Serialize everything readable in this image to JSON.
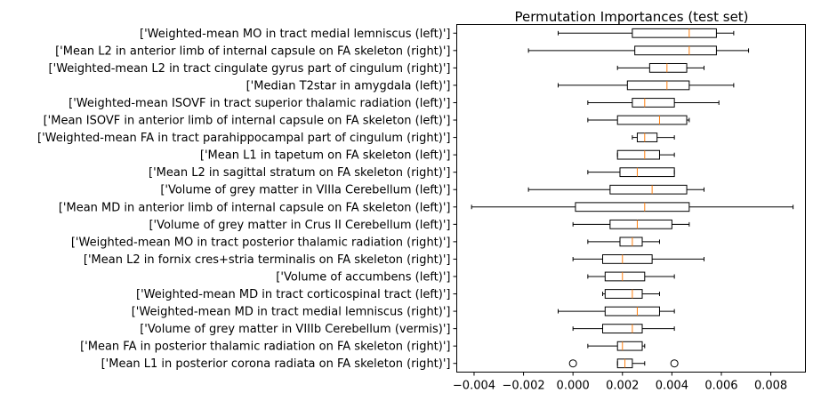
{
  "chart_data": {
    "type": "boxplot",
    "orientation": "horizontal",
    "title": "Permutation Importances (test set)",
    "xlabel": "",
    "ylabel": "",
    "xlim": [
      -0.0047,
      0.0094
    ],
    "xticks": [
      -0.004,
      -0.002,
      0.0,
      0.002,
      0.004,
      0.006,
      0.008
    ],
    "xtick_labels": [
      "−0.004",
      "−0.002",
      "0.000",
      "0.002",
      "0.004",
      "0.006",
      "0.008"
    ],
    "grid": false,
    "colors": {
      "box": "#000000",
      "median": "#ff7f0e",
      "flier": "#000000"
    },
    "boxes": [
      {
        "label": "['Weighted-mean MO in tract medial lemniscus (left)']",
        "whisker_low": -0.0006,
        "q1": 0.0024,
        "median": 0.0047,
        "q3": 0.0058,
        "whisker_high": 0.0065,
        "fliers": []
      },
      {
        "label": "['Mean L2 in anterior limb of internal capsule on FA skeleton (right)']",
        "whisker_low": -0.0018,
        "q1": 0.0025,
        "median": 0.0047,
        "q3": 0.0058,
        "whisker_high": 0.0071,
        "fliers": []
      },
      {
        "label": "['Weighted-mean L2 in tract cingulate gyrus part of cingulum (right)']",
        "whisker_low": 0.0018,
        "q1": 0.0031,
        "median": 0.0038,
        "q3": 0.0046,
        "whisker_high": 0.0053,
        "fliers": []
      },
      {
        "label": "['Median T2star in amygdala (left)']",
        "whisker_low": -0.0006,
        "q1": 0.0022,
        "median": 0.0038,
        "q3": 0.0047,
        "whisker_high": 0.0065,
        "fliers": []
      },
      {
        "label": "['Weighted-mean ISOVF in tract superior thalamic radiation (left)']",
        "whisker_low": 0.0006,
        "q1": 0.0024,
        "median": 0.0029,
        "q3": 0.0041,
        "whisker_high": 0.0059,
        "fliers": []
      },
      {
        "label": "['Mean ISOVF in anterior limb of internal capsule on FA skeleton (left)']",
        "whisker_low": 0.0006,
        "q1": 0.0018,
        "median": 0.0035,
        "q3": 0.0046,
        "whisker_high": 0.0047,
        "fliers": []
      },
      {
        "label": "['Weighted-mean FA in tract parahippocampal part of cingulum (right)']",
        "whisker_low": 0.0024,
        "q1": 0.0026,
        "median": 0.0029,
        "q3": 0.0034,
        "whisker_high": 0.0041,
        "fliers": []
      },
      {
        "label": "['Mean L1 in tapetum on FA skeleton (left)']",
        "whisker_low": 0.0018,
        "q1": 0.0018,
        "median": 0.0029,
        "q3": 0.0035,
        "whisker_high": 0.0041,
        "fliers": []
      },
      {
        "label": "['Mean L2 in sagittal stratum on FA skeleton (right)']",
        "whisker_low": 0.0006,
        "q1": 0.0019,
        "median": 0.0026,
        "q3": 0.0041,
        "whisker_high": 0.0041,
        "fliers": []
      },
      {
        "label": "['Volume of grey matter in VIIIa Cerebellum (left)']",
        "whisker_low": -0.0018,
        "q1": 0.0015,
        "median": 0.0032,
        "q3": 0.0046,
        "whisker_high": 0.0053,
        "fliers": []
      },
      {
        "label": "['Mean MD in anterior limb of internal capsule on FA skeleton (left)']",
        "whisker_low": -0.0041,
        "q1": 0.0001,
        "median": 0.0029,
        "q3": 0.0047,
        "whisker_high": 0.0089,
        "fliers": []
      },
      {
        "label": "['Volume of grey matter in Crus II Cerebellum (left)']",
        "whisker_low": 0.0,
        "q1": 0.0015,
        "median": 0.0026,
        "q3": 0.004,
        "whisker_high": 0.0047,
        "fliers": []
      },
      {
        "label": "['Weighted-mean MO in tract posterior thalamic radiation (right)']",
        "whisker_low": 0.0006,
        "q1": 0.0019,
        "median": 0.0024,
        "q3": 0.0028,
        "whisker_high": 0.0035,
        "fliers": []
      },
      {
        "label": "['Mean L2 in fornix cres+stria terminalis on FA skeleton (right)']",
        "whisker_low": 0.0,
        "q1": 0.0012,
        "median": 0.002,
        "q3": 0.0032,
        "whisker_high": 0.0053,
        "fliers": []
      },
      {
        "label": "['Volume of accumbens (left)']",
        "whisker_low": 0.0006,
        "q1": 0.0013,
        "median": 0.002,
        "q3": 0.0029,
        "whisker_high": 0.0041,
        "fliers": []
      },
      {
        "label": "['Weighted-mean MD in tract corticospinal tract (left)']",
        "whisker_low": 0.0012,
        "q1": 0.0013,
        "median": 0.0024,
        "q3": 0.0028,
        "whisker_high": 0.0035,
        "fliers": []
      },
      {
        "label": "['Weighted-mean MD in tract medial lemniscus (right)']",
        "whisker_low": -0.0006,
        "q1": 0.0013,
        "median": 0.0026,
        "q3": 0.0035,
        "whisker_high": 0.0041,
        "fliers": []
      },
      {
        "label": "['Volume of grey matter in VIIIb Cerebellum (vermis)']",
        "whisker_low": 0.0,
        "q1": 0.0012,
        "median": 0.0024,
        "q3": 0.0028,
        "whisker_high": 0.0041,
        "fliers": []
      },
      {
        "label": "['Mean FA in posterior thalamic radiation on FA skeleton (right)']",
        "whisker_low": 0.0006,
        "q1": 0.0018,
        "median": 0.002,
        "q3": 0.0028,
        "whisker_high": 0.0029,
        "fliers": []
      },
      {
        "label": "['Mean L1 in posterior corona radiata on FA skeleton (right)']",
        "whisker_low": 0.0018,
        "q1": 0.0018,
        "median": 0.0021,
        "q3": 0.0024,
        "whisker_high": 0.0029,
        "fliers": [
          0.0,
          0.0041
        ]
      }
    ]
  }
}
